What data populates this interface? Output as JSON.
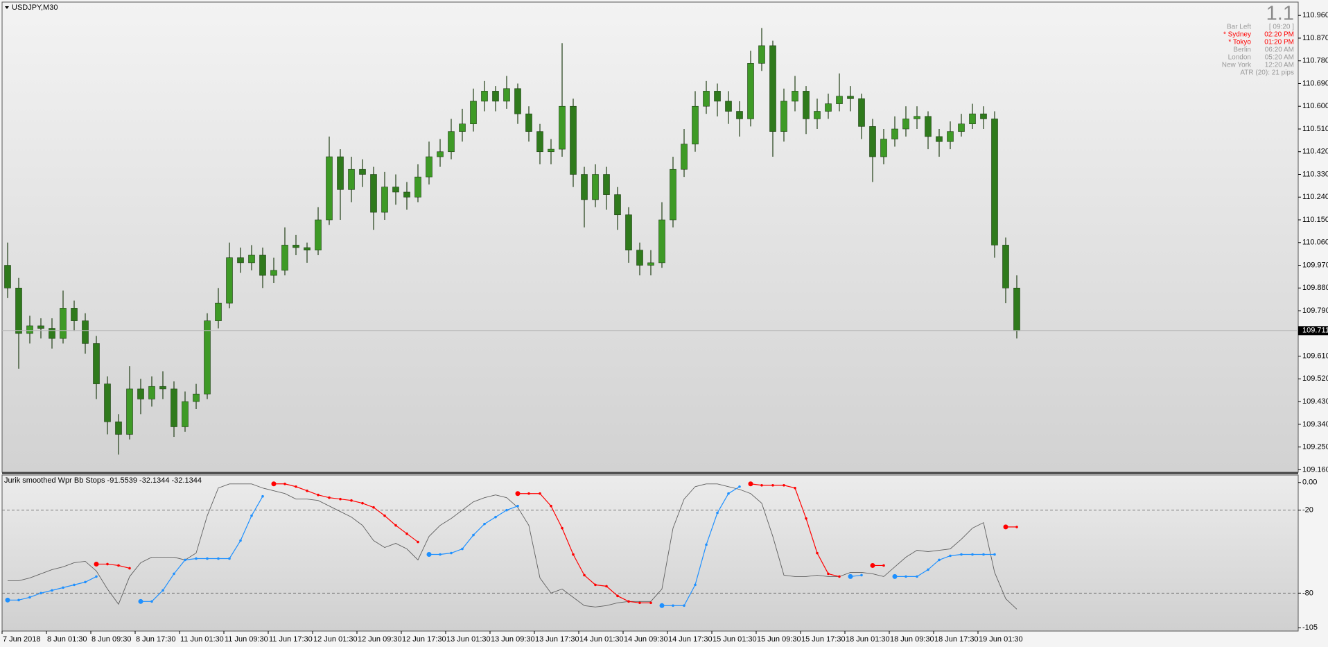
{
  "chart_data": [
    {
      "type": "candlestick",
      "title": "USDJPY,M30",
      "open": [
        109.97,
        109.88,
        109.7,
        109.73,
        109.72,
        109.68,
        109.8,
        109.75,
        109.66,
        109.5,
        109.35,
        109.3,
        109.48,
        109.44,
        109.49,
        109.48,
        109.33,
        109.43,
        109.46,
        109.75,
        109.82,
        110.0,
        109.98,
        110.01,
        109.93,
        109.95,
        110.05,
        110.04,
        110.03,
        110.15,
        110.4,
        110.27,
        110.35,
        110.33,
        110.18,
        110.28,
        110.26,
        110.24,
        110.32,
        110.4,
        110.42,
        110.5,
        110.53,
        110.62,
        110.66,
        110.62,
        110.67,
        110.57,
        110.5,
        110.42,
        110.43,
        110.6,
        110.33,
        110.23,
        110.33,
        110.25,
        110.17,
        110.03,
        109.97,
        109.98,
        110.15,
        110.35,
        110.45,
        110.6,
        110.66,
        110.62,
        110.58,
        110.55,
        110.77,
        110.84,
        110.5,
        110.62,
        110.66,
        110.55,
        110.58,
        110.61,
        110.64,
        110.63,
        110.52,
        110.4,
        110.47,
        110.51,
        110.55,
        110.56,
        110.48,
        110.46,
        110.5,
        110.53,
        110.57,
        110.55,
        110.05,
        109.88
      ],
      "high": [
        110.06,
        109.92,
        109.77,
        109.76,
        109.76,
        109.87,
        109.83,
        109.78,
        109.69,
        109.53,
        109.38,
        109.57,
        109.52,
        109.53,
        109.55,
        109.51,
        109.47,
        109.5,
        109.78,
        109.88,
        110.06,
        110.04,
        110.05,
        110.04,
        110.0,
        110.12,
        110.09,
        110.06,
        110.2,
        110.48,
        110.43,
        110.4,
        110.39,
        110.36,
        110.34,
        110.33,
        110.3,
        110.37,
        110.46,
        110.47,
        110.55,
        110.59,
        110.67,
        110.7,
        110.68,
        110.72,
        110.69,
        110.6,
        110.53,
        110.47,
        110.85,
        110.63,
        110.36,
        110.37,
        110.36,
        110.28,
        110.2,
        110.06,
        110.03,
        110.22,
        110.4,
        110.51,
        110.66,
        110.7,
        110.69,
        110.66,
        110.62,
        110.82,
        110.91,
        110.86,
        110.67,
        110.72,
        110.68,
        110.63,
        110.65,
        110.73,
        110.68,
        110.65,
        110.55,
        110.51,
        110.56,
        110.6,
        110.6,
        110.58,
        110.51,
        110.54,
        110.57,
        110.61,
        110.6,
        110.58,
        110.08,
        109.93
      ],
      "low": [
        109.84,
        109.56,
        109.66,
        109.68,
        109.64,
        109.66,
        109.71,
        109.62,
        109.44,
        109.3,
        109.22,
        109.28,
        109.38,
        109.41,
        109.44,
        109.29,
        109.31,
        109.4,
        109.44,
        109.72,
        109.8,
        109.94,
        109.95,
        109.88,
        109.9,
        109.93,
        110.01,
        109.98,
        110.01,
        110.13,
        110.15,
        110.22,
        110.28,
        110.11,
        110.15,
        110.21,
        110.19,
        110.22,
        110.29,
        110.36,
        110.39,
        110.46,
        110.5,
        110.58,
        110.58,
        110.59,
        110.53,
        110.46,
        110.37,
        110.37,
        110.4,
        110.28,
        110.12,
        110.2,
        110.19,
        110.11,
        109.98,
        109.93,
        109.93,
        109.96,
        110.12,
        110.32,
        110.42,
        110.57,
        110.56,
        110.53,
        110.48,
        110.52,
        110.74,
        110.4,
        110.46,
        110.58,
        110.49,
        110.51,
        110.55,
        110.58,
        110.58,
        110.47,
        110.3,
        110.37,
        110.44,
        110.48,
        110.51,
        110.43,
        110.4,
        110.43,
        110.48,
        110.51,
        110.51,
        110.0,
        109.82,
        109.68
      ],
      "close": [
        109.88,
        109.7,
        109.73,
        109.72,
        109.68,
        109.8,
        109.75,
        109.66,
        109.5,
        109.35,
        109.3,
        109.48,
        109.44,
        109.49,
        109.48,
        109.33,
        109.43,
        109.46,
        109.75,
        109.82,
        110.0,
        109.98,
        110.01,
        109.93,
        109.95,
        110.05,
        110.04,
        110.03,
        110.15,
        110.4,
        110.27,
        110.35,
        110.33,
        110.18,
        110.28,
        110.26,
        110.24,
        110.32,
        110.4,
        110.42,
        110.5,
        110.53,
        110.62,
        110.66,
        110.62,
        110.67,
        110.57,
        110.5,
        110.42,
        110.43,
        110.6,
        110.33,
        110.23,
        110.33,
        110.25,
        110.17,
        110.03,
        109.97,
        109.98,
        110.15,
        110.35,
        110.45,
        110.6,
        110.66,
        110.62,
        110.58,
        110.55,
        110.77,
        110.84,
        110.5,
        110.62,
        110.66,
        110.55,
        110.58,
        110.61,
        110.64,
        110.63,
        110.52,
        110.4,
        110.47,
        110.51,
        110.55,
        110.56,
        110.48,
        110.46,
        110.5,
        110.53,
        110.57,
        110.55,
        110.05,
        109.88,
        109.711
      ],
      "up_color": "#3e9a26",
      "down_color": "#2f7a1c",
      "wick_color": "#1f3d14",
      "ylim": [
        109.15,
        111.01
      ],
      "yticks": [
        {
          "value": 110.96,
          "label": "110.960"
        },
        {
          "value": 110.87,
          "label": "110.870"
        },
        {
          "value": 110.78,
          "label": "110.780"
        },
        {
          "value": 110.69,
          "label": "110.690"
        },
        {
          "value": 110.6,
          "label": "110.600"
        },
        {
          "value": 110.51,
          "label": "110.510"
        },
        {
          "value": 110.42,
          "label": "110.420"
        },
        {
          "value": 110.33,
          "label": "110.330"
        },
        {
          "value": 110.24,
          "label": "110.240"
        },
        {
          "value": 110.15,
          "label": "110.150"
        },
        {
          "value": 110.06,
          "label": "110.060"
        },
        {
          "value": 109.97,
          "label": "109.970"
        },
        {
          "value": 109.88,
          "label": "109.880"
        },
        {
          "value": 109.79,
          "label": "109.790"
        },
        {
          "value": 109.61,
          "label": "109.610"
        },
        {
          "value": 109.52,
          "label": "109.520"
        },
        {
          "value": 109.43,
          "label": "109.430"
        },
        {
          "value": 109.34,
          "label": "109.340"
        },
        {
          "value": 109.25,
          "label": "109.250"
        },
        {
          "value": 109.16,
          "label": "109.160"
        }
      ],
      "current_price": 109.711,
      "info": {
        "big": "1.1",
        "rows": [
          {
            "label": "Bar Left",
            "value": "[ 09:20 ]",
            "highlight": false
          },
          {
            "label": "* Sydney",
            "value": "02:20 PM",
            "highlight": true
          },
          {
            "label": "* Tokyo",
            "value": "01:20 PM",
            "highlight": true
          },
          {
            "label": "Berlin",
            "value": "06:20 AM",
            "highlight": false
          },
          {
            "label": "London",
            "value": "05:20 AM",
            "highlight": false
          },
          {
            "label": "New York",
            "value": "12:20 AM",
            "highlight": false
          }
        ],
        "atr": "ATR (20): 21 pips"
      }
    },
    {
      "type": "line",
      "title": "Jurik smoothed Wpr Bb Stops -91.5539 -32.1344 -32.1344",
      "categories": [
        "7 Jun 2018",
        null,
        null,
        null,
        "8 Jun 01:30",
        null,
        null,
        null,
        "8 Jun 09:30",
        null,
        null,
        null,
        "8 Jun 17:30",
        null,
        null,
        null,
        "11 Jun 01:30",
        null,
        null,
        null,
        "11 Jun 09:30",
        null,
        null,
        null,
        "11 Jun 17:30",
        null,
        null,
        null,
        "12 Jun 01:30",
        null,
        null,
        null,
        "12 Jun 09:30",
        null,
        null,
        null,
        "12 Jun 17:30",
        null,
        null,
        null,
        "13 Jun 01:30",
        null,
        null,
        null,
        "13 Jun 09:30",
        null,
        null,
        null,
        "13 Jun 17:30",
        null,
        null,
        null,
        "14 Jun 01:30",
        null,
        null,
        null,
        "14 Jun 09:30",
        null,
        null,
        null,
        "14 Jun 17:30",
        null,
        null,
        null,
        "15 Jun 01:30",
        null,
        null,
        null,
        "15 Jun 09:30",
        null,
        null,
        null,
        "15 Jun 17:30",
        null,
        null,
        null,
        "18 Jun 01:30",
        null,
        null,
        null,
        "18 Jun 09:30",
        null,
        null,
        null,
        "18 Jun 17:30",
        null,
        null,
        null,
        "19 Jun 01:30",
        null,
        null,
        null
      ],
      "series": [
        {
          "color": "#606060",
          "style": "line",
          "values": [
            -71,
            -71,
            -69,
            -66,
            -63,
            -61,
            -58,
            -57,
            -64,
            -77,
            -88,
            -68,
            -58,
            -54,
            -54,
            -54,
            -56,
            -51,
            -24,
            -4,
            -1,
            -1,
            -1,
            -4,
            -6,
            -8,
            -12,
            -12,
            -13,
            -17,
            -21,
            -25,
            -31,
            -42,
            -47,
            -44,
            -48,
            -56,
            -39,
            -31,
            -26,
            -20,
            -14,
            -11,
            -9,
            -11,
            -18,
            -31,
            -69,
            -80,
            -77,
            -83,
            -89,
            -90,
            -89,
            -87,
            -86,
            -86,
            -86,
            -77,
            -33,
            -12,
            -3,
            -1,
            -1,
            -3,
            -5,
            -8,
            -15,
            -39,
            -67,
            -68,
            -68,
            -67,
            -68,
            -68,
            -65,
            -65,
            -66,
            -68,
            -61,
            -54,
            -49,
            -50,
            -49,
            -48,
            -41,
            -33,
            -29,
            -65,
            -84,
            -91.5539
          ]
        },
        {
          "color": "#ff0000",
          "style": "dots",
          "values": [
            null,
            null,
            null,
            null,
            null,
            null,
            null,
            null,
            -59,
            -59,
            -60,
            -62,
            null,
            null,
            null,
            null,
            null,
            null,
            null,
            null,
            null,
            null,
            null,
            null,
            -1,
            -1,
            -3,
            -6,
            -9,
            -11,
            -12,
            -13,
            -15,
            -18,
            -24,
            -31,
            -37,
            -43,
            null,
            null,
            null,
            null,
            null,
            null,
            null,
            null,
            -8,
            -8,
            -8,
            -17,
            -33,
            -52,
            -67,
            -74,
            -75,
            -82,
            -86,
            -87,
            -87,
            null,
            null,
            null,
            null,
            null,
            null,
            null,
            null,
            -1,
            -2,
            -2,
            -2,
            -4,
            -26,
            -51,
            -66,
            -68,
            null,
            null,
            -60,
            -60,
            null,
            null,
            null,
            null,
            null,
            null,
            null,
            null,
            null,
            null,
            -32.1344,
            -32.1344
          ]
        },
        {
          "color": "#1e90ff",
          "style": "dots",
          "values": [
            -85,
            -85,
            -83,
            -80,
            -78,
            -76,
            -74,
            -72,
            -68,
            null,
            null,
            null,
            -86,
            -86,
            -78,
            -66,
            -56,
            -55,
            -55,
            -55,
            -55,
            -42,
            -24,
            -10,
            null,
            null,
            null,
            null,
            null,
            null,
            null,
            null,
            null,
            null,
            null,
            null,
            null,
            null,
            -52,
            -52,
            -51,
            -48,
            -38,
            -30,
            -25,
            -20,
            -17,
            null,
            null,
            null,
            null,
            null,
            null,
            null,
            null,
            null,
            null,
            null,
            null,
            -89,
            -89,
            -89,
            -74,
            -45,
            -22,
            -8,
            -3,
            null,
            null,
            null,
            null,
            null,
            null,
            null,
            null,
            null,
            -68,
            -67,
            null,
            null,
            -68,
            -68,
            -68,
            -63,
            -56,
            -53,
            -52,
            -52,
            -52,
            -52,
            null,
            null
          ]
        }
      ],
      "ylim": [
        -107.4,
        4.9
      ],
      "yticks": [
        {
          "value": 0,
          "label": "0.00"
        },
        -20,
        -80,
        -105
      ],
      "levels": [
        -20,
        -80
      ]
    }
  ]
}
